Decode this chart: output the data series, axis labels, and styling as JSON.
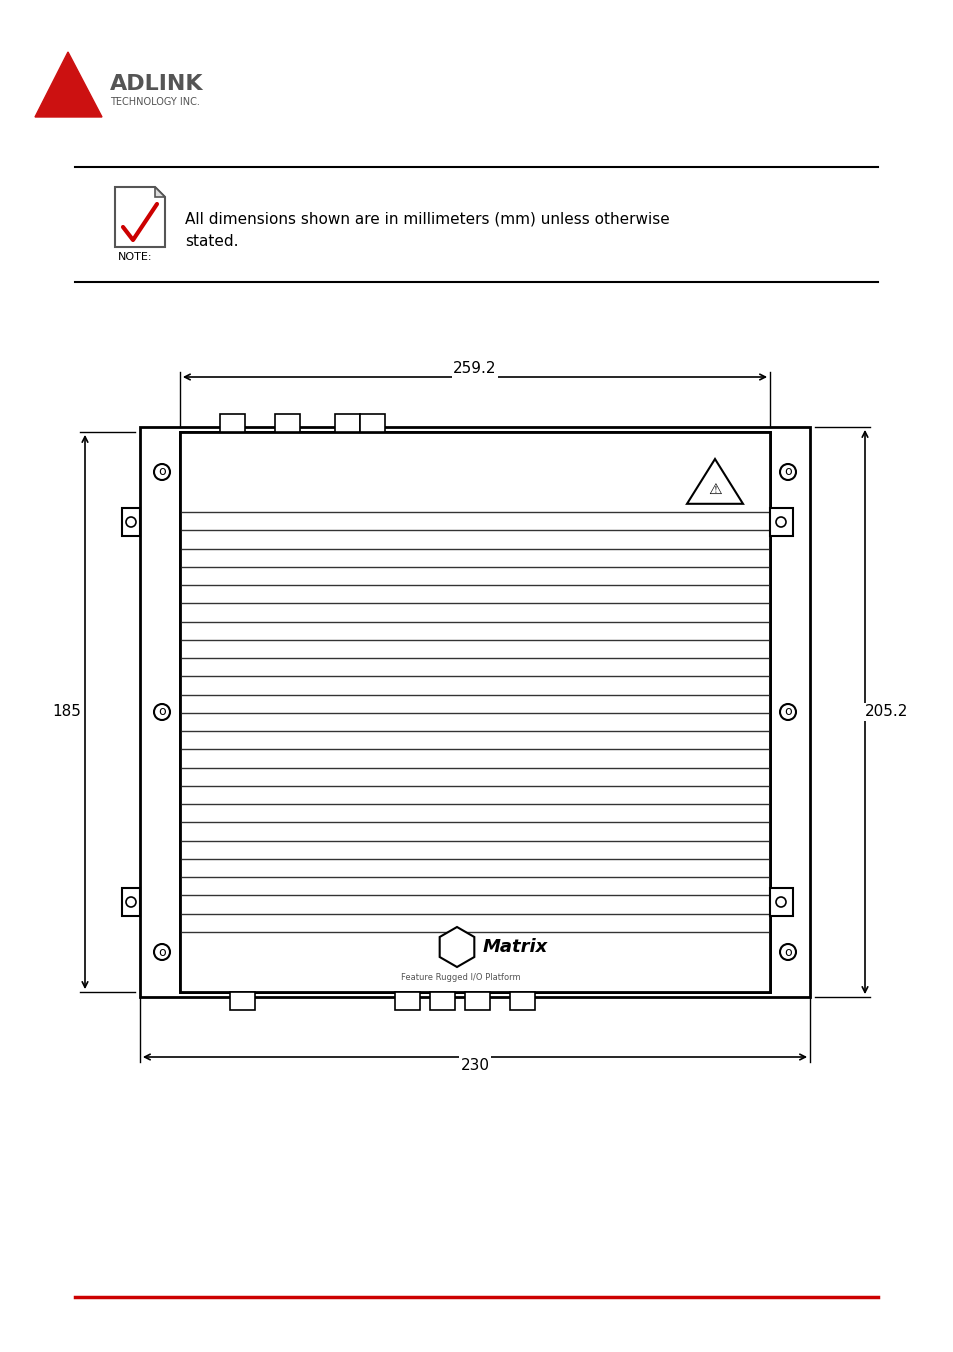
{
  "bg_color": "#ffffff",
  "line_color": "#000000",
  "gray_color": "#888888",
  "dim_color": "#333333",
  "red_color": "#cc0000",
  "adlink_gray": "#666666",
  "note_text": "All dimensions shown are in millimeters (mm) unless otherwise\nstated.",
  "note_label": "NOTE:",
  "dim_top": "259.2",
  "dim_left": "185",
  "dim_right": "205.2",
  "dim_bottom": "230",
  "footer_line_color": "#cc0000"
}
